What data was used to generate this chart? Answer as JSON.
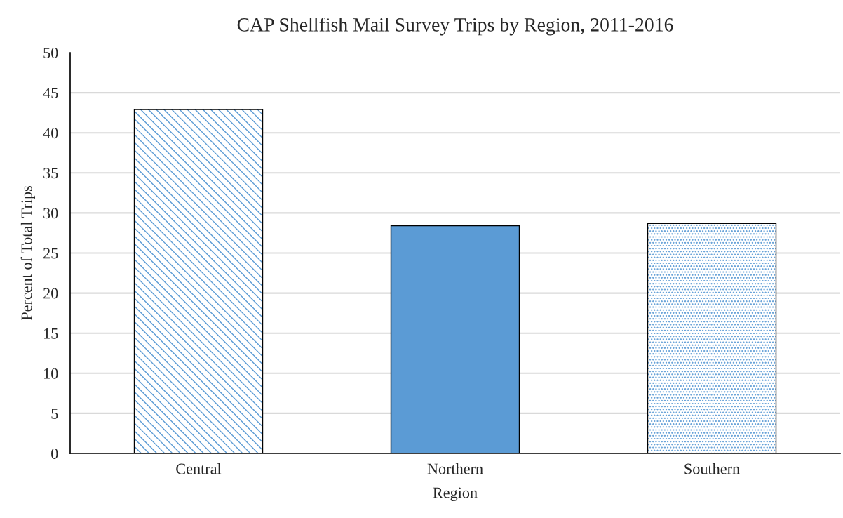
{
  "chart_data": {
    "type": "bar",
    "title": "CAP Shellfish Mail Survey Trips by Region, 2011-2016",
    "xlabel": "Region",
    "ylabel": "Percent of Total Trips",
    "categories": [
      "Central",
      "Northern",
      "Southern"
    ],
    "values": [
      42.9,
      28.4,
      28.7
    ],
    "colors": [
      "#5b9bd5",
      "#5b9bd5",
      "#5b9bd5"
    ],
    "ylim": [
      0,
      50
    ],
    "yticks": [
      0,
      5,
      10,
      15,
      20,
      25,
      30,
      35,
      40,
      45,
      50
    ],
    "grid": "y"
  }
}
